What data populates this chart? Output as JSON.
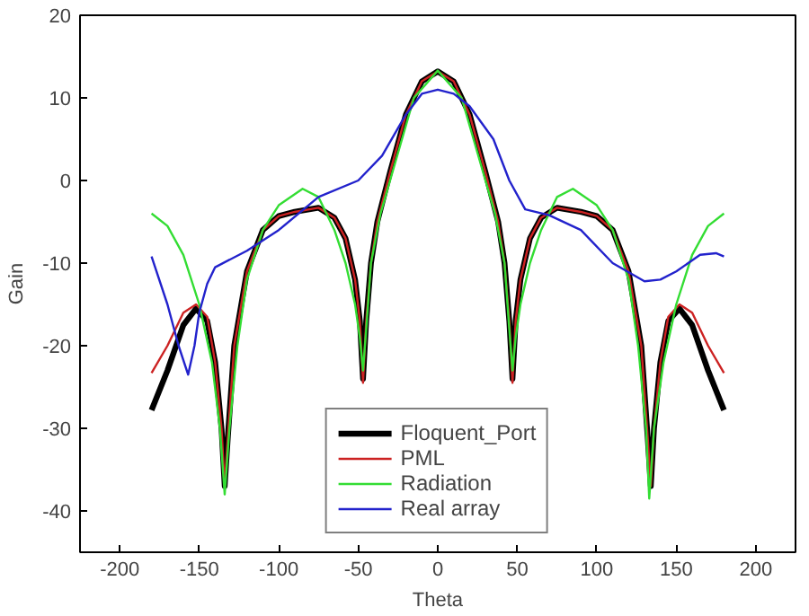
{
  "chart_data": {
    "type": "line",
    "xlabel": "Theta",
    "ylabel": "Gain",
    "xlim": [
      -225,
      225
    ],
    "ylim": [
      -45,
      20
    ],
    "xticks": [
      -200,
      -150,
      -100,
      -50,
      0,
      50,
      100,
      150,
      200
    ],
    "yticks": [
      -40,
      -30,
      -20,
      -10,
      0,
      10,
      20
    ],
    "grid": false,
    "legend": "bottom",
    "marker": "none",
    "line_style": "solid",
    "series": [
      {
        "name": "Floquent_Port",
        "color": "#000000",
        "x": [
          -180,
          -170,
          -160,
          -152,
          -145,
          -140,
          -136,
          -134,
          -132,
          -128,
          -120,
          -110,
          -100,
          -90,
          -75,
          -65,
          -58,
          -52,
          -49,
          -47,
          -45,
          -42,
          -38,
          -30,
          -20,
          -10,
          0,
          10,
          20,
          30,
          38,
          42,
          45,
          47,
          49,
          52,
          58,
          65,
          75,
          90,
          100,
          110,
          120,
          128,
          132,
          134,
          136,
          140,
          145,
          152,
          160,
          170,
          180
        ],
        "values": [
          -27.8,
          -23,
          -17.5,
          -15.5,
          -17,
          -22,
          -30,
          -37,
          -31,
          -20,
          -11,
          -6,
          -4.3,
          -3.8,
          -3.3,
          -4.5,
          -7,
          -12,
          -17,
          -24,
          -17,
          -10,
          -5,
          1,
          8,
          12,
          13.2,
          12,
          8,
          1,
          -5,
          -10,
          -17,
          -24,
          -17,
          -12,
          -7,
          -4.5,
          -3.3,
          -3.8,
          -4.3,
          -6,
          -11,
          -20,
          -31,
          -37,
          -30,
          -22,
          -17,
          -15.5,
          -17.5,
          -23,
          -27.8
        ]
      },
      {
        "name": "PML",
        "color": "#cc2222",
        "x": [
          -180,
          -170,
          -160,
          -152,
          -145,
          -140,
          -136,
          -134,
          -132,
          -128,
          -120,
          -110,
          -100,
          -90,
          -75,
          -65,
          -58,
          -52,
          -49,
          -47,
          -45,
          -42,
          -38,
          -30,
          -20,
          -10,
          0,
          10,
          20,
          30,
          38,
          42,
          45,
          47,
          49,
          52,
          58,
          65,
          75,
          90,
          100,
          110,
          120,
          128,
          132,
          134,
          136,
          140,
          145,
          152,
          160,
          170,
          180
        ],
        "values": [
          -23.3,
          -20,
          -16,
          -15,
          -16.5,
          -22,
          -30,
          -37,
          -31,
          -20,
          -11,
          -6,
          -4.3,
          -3.8,
          -3.3,
          -4.5,
          -7,
          -12,
          -17,
          -24.5,
          -17,
          -10,
          -5,
          1,
          8,
          12,
          13.2,
          12,
          8,
          1,
          -5,
          -10,
          -17,
          -24.5,
          -17,
          -12,
          -7,
          -4.5,
          -3.3,
          -3.8,
          -4.3,
          -6,
          -11,
          -20,
          -31,
          -37,
          -30,
          -22,
          -16.5,
          -15,
          -16,
          -20,
          -23.3
        ]
      },
      {
        "name": "Radiation",
        "color": "#33dd33",
        "x": [
          -180,
          -170,
          -160,
          -150,
          -142,
          -137,
          -134,
          -131,
          -126,
          -120,
          -110,
          -100,
          -85,
          -75,
          -65,
          -58,
          -52,
          -49,
          -47,
          -45,
          -42,
          -36,
          -30,
          -15,
          0,
          15,
          30,
          36,
          42,
          45,
          47,
          49,
          52,
          58,
          65,
          75,
          85,
          100,
          110,
          120,
          126,
          131,
          133,
          136,
          142,
          150,
          160,
          170,
          180
        ],
        "values": [
          -4,
          -5.5,
          -9,
          -15,
          -22,
          -30,
          -38,
          -30,
          -20,
          -12,
          -6,
          -3,
          -1,
          -2,
          -6,
          -10,
          -15,
          -19,
          -23,
          -18,
          -10,
          -4,
          0,
          10,
          13.3,
          10,
          0,
          -4,
          -10,
          -18,
          -23,
          -19,
          -15,
          -10,
          -6,
          -2,
          -1,
          -3,
          -6,
          -12,
          -20,
          -30,
          -38.5,
          -30,
          -22,
          -15,
          -9,
          -5.5,
          -4
        ]
      },
      {
        "name": "Real array",
        "color": "#2222cc",
        "x": [
          -180,
          -170,
          -163,
          -157,
          -153,
          -150,
          -145,
          -140,
          -120,
          -100,
          -75,
          -50,
          -35,
          -20,
          -10,
          0,
          10,
          20,
          35,
          45,
          55,
          70,
          90,
          110,
          130,
          140,
          150,
          165,
          175,
          180
        ],
        "values": [
          -9.2,
          -15,
          -20,
          -23.5,
          -20,
          -16,
          -12.5,
          -10.5,
          -8.5,
          -6,
          -2,
          0,
          3,
          8,
          10.5,
          11,
          10.5,
          9,
          5,
          0,
          -3.5,
          -4.2,
          -6,
          -10,
          -12.2,
          -12,
          -11,
          -9,
          -8.8,
          -9.2
        ]
      }
    ]
  }
}
